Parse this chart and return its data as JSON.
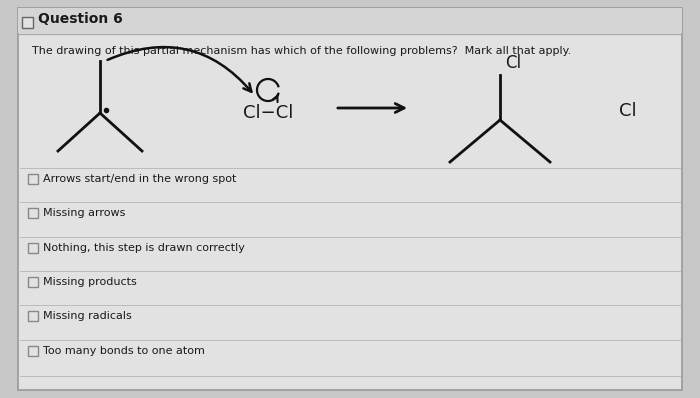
{
  "title": "Question 6",
  "subtitle": "The drawing of this partial mechanism has which of the following problems?  Mark all that apply.",
  "bg_color": "#c8c8c8",
  "panel_color": "#e2e2e2",
  "header_color": "#d5d5d5",
  "options": [
    "Arrows start/end in the wrong spot",
    "Missing arrows",
    "Nothing, this step is drawn correctly",
    "Missing products",
    "Missing radicals",
    "Too many bonds to one atom"
  ],
  "text_color": "#1a1a1a",
  "line_color": "#111111",
  "checkbox_color": "#ffffff"
}
